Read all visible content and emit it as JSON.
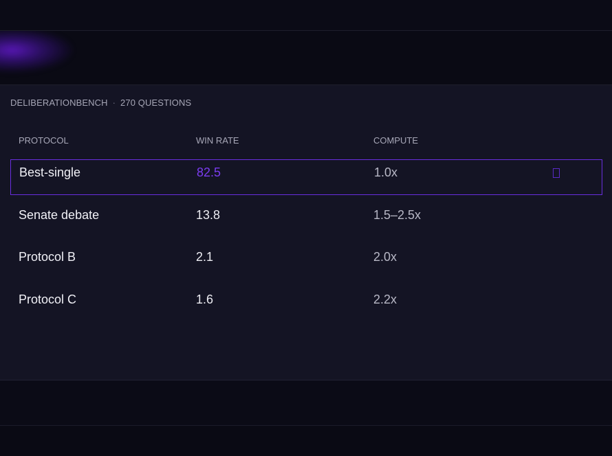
{
  "benchmark": {
    "name": "DELIBERATIONBENCH",
    "separator": "·",
    "count_label": "270 QUESTIONS"
  },
  "table": {
    "columns": [
      "PROTOCOL",
      "WIN RATE",
      "COMPUTE"
    ],
    "rows": [
      {
        "protocol": "Best-single",
        "win_rate": "82.5",
        "compute": "1.0x",
        "selected": true
      },
      {
        "protocol": "Senate debate",
        "win_rate": "13.8",
        "compute": "1.5–2.5x",
        "selected": false
      },
      {
        "protocol": "Protocol B",
        "win_rate": "2.1",
        "compute": "2.0x",
        "selected": false
      },
      {
        "protocol": "Protocol C",
        "win_rate": "1.6",
        "compute": "2.2x",
        "selected": false
      }
    ]
  },
  "colors": {
    "accent": "#7b3cf0",
    "panel": "#141424",
    "background": "#0a0a14"
  },
  "icons": {
    "selected_marker": "check-box-icon"
  }
}
